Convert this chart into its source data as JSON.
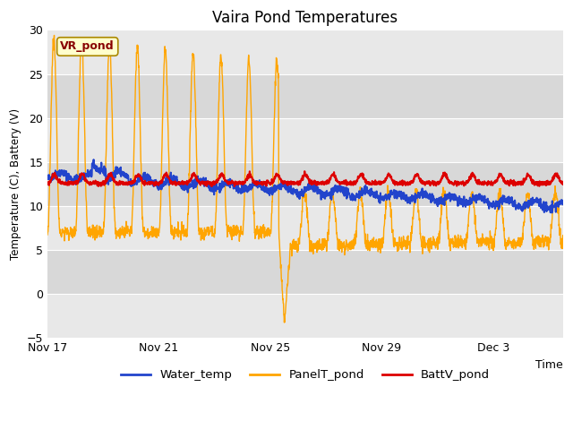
{
  "title": "Vaira Pond Temperatures",
  "ylabel": "Temperature (C), Battery (V)",
  "xlabel": "Time",
  "ylim": [
    -5,
    30
  ],
  "yticks": [
    -5,
    0,
    5,
    10,
    15,
    20,
    25,
    30
  ],
  "xtick_labels": [
    "Nov 17",
    "Nov 21",
    "Nov 25",
    "Nov 29",
    "Dec 3"
  ],
  "xtick_positions": [
    0,
    4,
    8,
    12,
    16
  ],
  "total_days": 18.5,
  "fig_bg": "#ffffff",
  "plot_bg": "#e8e8e8",
  "band_light": "#e8e8e8",
  "band_dark": "#d8d8d8",
  "water_temp_color": "#2244cc",
  "panel_temp_color": "#ffa500",
  "batt_color": "#dd0000",
  "vr_pond_label": "VR_pond",
  "vr_pond_bg": "#ffffcc",
  "vr_pond_border": "#aa8800",
  "vr_pond_text_color": "#880000",
  "legend_entries": [
    "Water_temp",
    "PanelT_pond",
    "BattV_pond"
  ]
}
